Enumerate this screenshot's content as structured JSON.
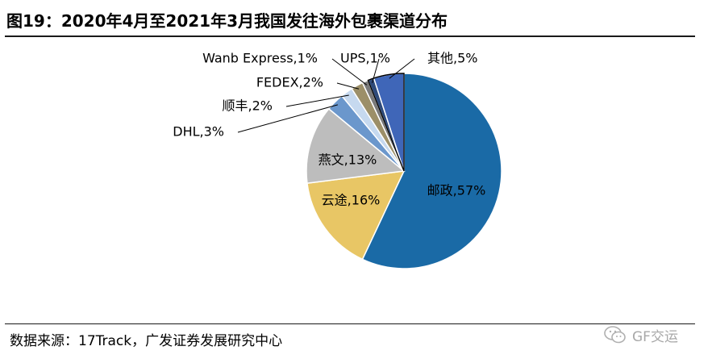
{
  "header": {
    "title": "图19：2020年4月至2021年3月我国发往海外包裹渠道分布"
  },
  "footer": {
    "source": "数据来源：17Track，广发证券发展研究中心",
    "watermark": "GF交运"
  },
  "chart_data": {
    "type": "pie",
    "title": "图19：2020年4月至2021年3月我国发往海外包裹渠道分布",
    "slices": [
      {
        "name": "邮政",
        "value": 57,
        "label": "邮政,57%",
        "color": "#1a6aa6"
      },
      {
        "name": "云途",
        "value": 16,
        "label": "云途,16%",
        "color": "#e8c665"
      },
      {
        "name": "燕文",
        "value": 13,
        "label": "燕文,13%",
        "color": "#bdbdbd"
      },
      {
        "name": "DHL",
        "value": 3,
        "label": "DHL,3%",
        "color": "#6b97cc"
      },
      {
        "name": "顺丰",
        "value": 2,
        "label": "顺丰,2%",
        "color": "#c6d9ef"
      },
      {
        "name": "FEDEX",
        "value": 2,
        "label": "FEDEX,2%",
        "color": "#9c8f68"
      },
      {
        "name": "Wanb Express",
        "value": 1,
        "label": "Wanb Express,1%",
        "color": "#7a7a7a"
      },
      {
        "name": "UPS",
        "value": 1,
        "label": "UPS,1%",
        "color": "#2e4a7a"
      },
      {
        "name": "其他",
        "value": 5,
        "label": "其他,5%",
        "color": "#3f66b8"
      }
    ]
  }
}
